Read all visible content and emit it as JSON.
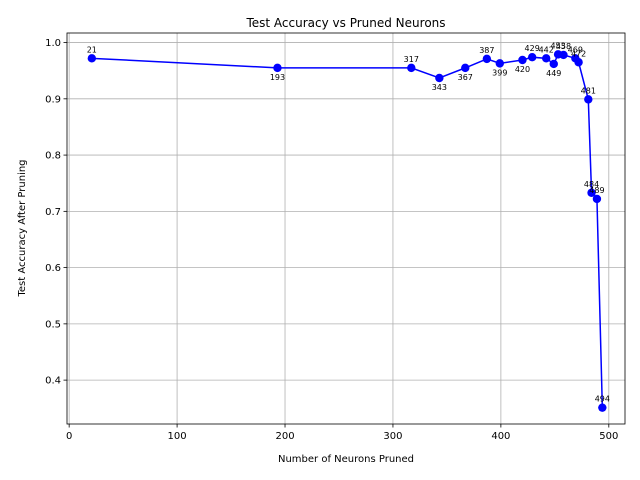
{
  "chart_data": {
    "type": "line",
    "title": "Test Accuracy vs Pruned Neurons",
    "xlabel": "Number of Neurons Pruned",
    "ylabel": "Test Accuracy After Pruning",
    "xlim": [
      -2,
      515
    ],
    "ylim": [
      0.322,
      1.017
    ],
    "xticks": [
      0,
      100,
      200,
      300,
      400,
      500
    ],
    "yticks": [
      0.4,
      0.5,
      0.6,
      0.7,
      0.8,
      0.9,
      1.0
    ],
    "grid": true,
    "color": "#0000ff",
    "marker": "circle",
    "points": [
      {
        "x": 21,
        "y": 0.972,
        "label": "21"
      },
      {
        "x": 193,
        "y": 0.955,
        "label": "193"
      },
      {
        "x": 317,
        "y": 0.955,
        "label": "317"
      },
      {
        "x": 343,
        "y": 0.937,
        "label": "343"
      },
      {
        "x": 367,
        "y": 0.955,
        "label": "367"
      },
      {
        "x": 387,
        "y": 0.971,
        "label": "387"
      },
      {
        "x": 399,
        "y": 0.963,
        "label": "399"
      },
      {
        "x": 420,
        "y": 0.969,
        "label": "420"
      },
      {
        "x": 429,
        "y": 0.974,
        "label": "429"
      },
      {
        "x": 442,
        "y": 0.972,
        "label": "442"
      },
      {
        "x": 449,
        "y": 0.962,
        "label": "449"
      },
      {
        "x": 453,
        "y": 0.979,
        "label": "453"
      },
      {
        "x": 458,
        "y": 0.978,
        "label": "458"
      },
      {
        "x": 469,
        "y": 0.972,
        "label": "469"
      },
      {
        "x": 472,
        "y": 0.965,
        "label": "472"
      },
      {
        "x": 481,
        "y": 0.899,
        "label": "481"
      },
      {
        "x": 484,
        "y": 0.733,
        "label": "484"
      },
      {
        "x": 489,
        "y": 0.722,
        "label": "489"
      },
      {
        "x": 494,
        "y": 0.351,
        "label": "494"
      }
    ]
  }
}
